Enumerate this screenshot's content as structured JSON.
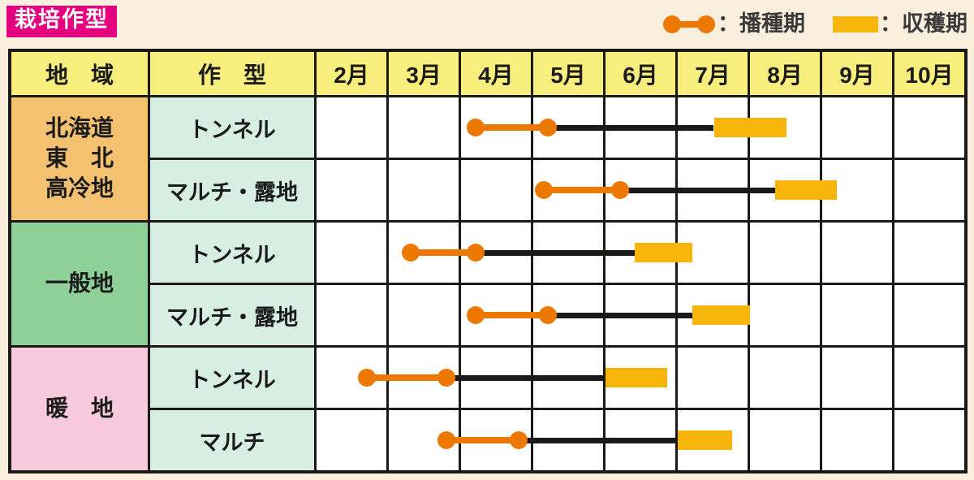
{
  "title": "栽培作型",
  "legend": {
    "sowing_label": "：播種期",
    "harvest_label": "：収穫期"
  },
  "colors": {
    "page_cream": "#FAEFDC",
    "title_magenta": "#E4007F",
    "header_yellow": "#F7EE7D",
    "region_orange": "#F4C171",
    "region_green": "#8FD099",
    "region_pink": "#F8CBDC",
    "type_mint": "#D7EEE5",
    "grid_line": "#1C1A19",
    "timeline_black": "#1C1A19",
    "accent_orange": "#ED7800",
    "harvest_yellow": "#F7B50C"
  },
  "table": {
    "col_headers": {
      "region": "地　域",
      "type": "作　型"
    },
    "months": [
      "2月",
      "3月",
      "4月",
      "5月",
      "6月",
      "7月",
      "8月",
      "9月",
      "10月"
    ],
    "regions": [
      {
        "name": "北海道\n東　北\n高冷地"
      },
      {
        "name": "一般地"
      },
      {
        "name": "暖　地"
      }
    ]
  },
  "chart_data": {
    "type": "timeline",
    "title": "栽培作型",
    "x_axis": {
      "unit": "month",
      "start": 2,
      "end": 11,
      "tick_labels": [
        "2月",
        "3月",
        "4月",
        "5月",
        "6月",
        "7月",
        "8月",
        "9月",
        "10月"
      ]
    },
    "legend": [
      {
        "marker": "orange-dumbbell",
        "label": "播種期"
      },
      {
        "marker": "yellow-bar",
        "label": "収穫期"
      }
    ],
    "rows": [
      {
        "region": "北海道・東北・高冷地",
        "crop_type": "トンネル",
        "sowing_months": [
          4.2,
          5.2
        ],
        "harvest_months": [
          7.5,
          8.5
        ]
      },
      {
        "region": "北海道・東北・高冷地",
        "crop_type": "マルチ・露地",
        "sowing_months": [
          5.15,
          6.2
        ],
        "harvest_months": [
          8.35,
          9.2
        ]
      },
      {
        "region": "一般地",
        "crop_type": "トンネル",
        "sowing_months": [
          3.3,
          4.2
        ],
        "harvest_months": [
          6.4,
          7.2
        ]
      },
      {
        "region": "一般地",
        "crop_type": "マルチ・露地",
        "sowing_months": [
          4.2,
          5.2
        ],
        "harvest_months": [
          7.2,
          8.0
        ]
      },
      {
        "region": "暖地",
        "crop_type": "トンネル",
        "sowing_months": [
          2.7,
          3.8
        ],
        "harvest_months": [
          6.0,
          6.85
        ]
      },
      {
        "region": "暖地",
        "crop_type": "マルチ",
        "sowing_months": [
          3.8,
          4.8
        ],
        "harvest_months": [
          7.0,
          7.75
        ]
      }
    ]
  }
}
